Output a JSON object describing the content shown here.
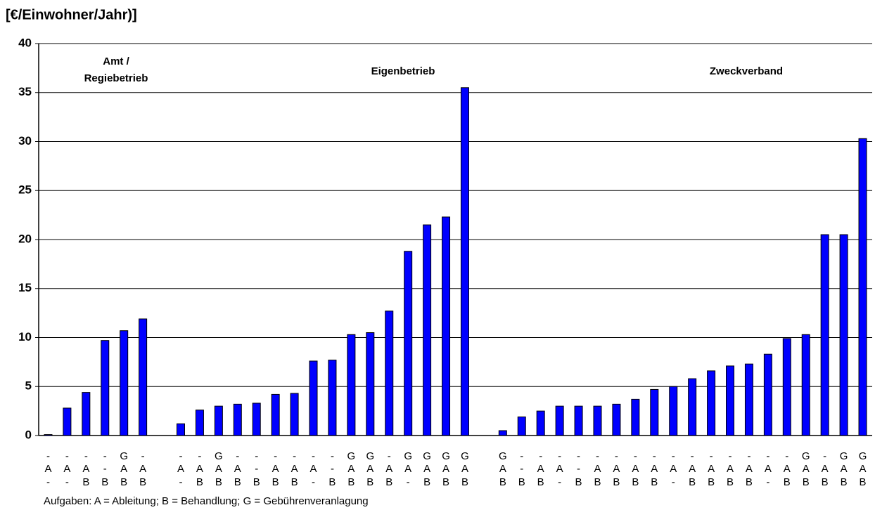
{
  "chart_data": {
    "type": "bar",
    "y_label": "[€/Einwohner/Jahr)]",
    "footnote": "Aufgaben: A = Ableitung; B  = Behandlung; G =  Gebührenveranlagung",
    "annotations": [
      [
        "Amt /",
        "Regiebetrieb"
      ],
      [
        "Eigenbetrieb"
      ],
      [
        "Zweckverband"
      ]
    ],
    "categories": [
      [
        "-",
        "A",
        "-"
      ],
      [
        "-",
        "A",
        "-"
      ],
      [
        "-",
        "A",
        "B"
      ],
      [
        "-",
        "-",
        "B"
      ],
      [
        "G",
        "A",
        "B"
      ],
      [
        "-",
        "A",
        "B"
      ],
      null,
      [
        "-",
        "A",
        "-"
      ],
      [
        "-",
        "A",
        "B"
      ],
      [
        "G",
        "A",
        "B"
      ],
      [
        "-",
        "A",
        "B"
      ],
      [
        "-",
        "-",
        "B"
      ],
      [
        "-",
        "A",
        "B"
      ],
      [
        "-",
        "A",
        "B"
      ],
      [
        "-",
        "A",
        "-"
      ],
      [
        "-",
        "-",
        "B"
      ],
      [
        "G",
        "A",
        "B"
      ],
      [
        "G",
        "A",
        "B"
      ],
      [
        "-",
        "A",
        "B"
      ],
      [
        "G",
        "A",
        "-"
      ],
      [
        "G",
        "A",
        "B"
      ],
      [
        "G",
        "A",
        "B"
      ],
      [
        "G",
        "A",
        "B"
      ],
      null,
      [
        "G",
        "A",
        "B"
      ],
      [
        "-",
        "-",
        "B"
      ],
      [
        "-",
        "A",
        "B"
      ],
      [
        "-",
        "A",
        "-"
      ],
      [
        "-",
        "-",
        "B"
      ],
      [
        "-",
        "A",
        "B"
      ],
      [
        "-",
        "A",
        "B"
      ],
      [
        "-",
        "A",
        "B"
      ],
      [
        "-",
        "A",
        "B"
      ],
      [
        "-",
        "A",
        "-"
      ],
      [
        "-",
        "A",
        "B"
      ],
      [
        "-",
        "A",
        "B"
      ],
      [
        "-",
        "A",
        "B"
      ],
      [
        "-",
        "A",
        "B"
      ],
      [
        "-",
        "A",
        "-"
      ],
      [
        "-",
        "A",
        "B"
      ],
      [
        "G",
        "A",
        "B"
      ],
      [
        "-",
        "A",
        "B"
      ],
      [
        "G",
        "A",
        "B"
      ],
      [
        "G",
        "A",
        "B"
      ]
    ],
    "values": [
      0.1,
      2.8,
      4.4,
      9.7,
      10.7,
      11.9,
      null,
      1.2,
      2.6,
      3.0,
      3.2,
      3.3,
      4.2,
      4.3,
      7.6,
      7.7,
      10.3,
      10.5,
      12.7,
      18.8,
      21.5,
      22.3,
      35.5,
      null,
      0.5,
      1.9,
      2.5,
      3.0,
      3.0,
      3.0,
      3.2,
      3.7,
      4.7,
      5.0,
      5.8,
      6.6,
      7.1,
      7.3,
      8.3,
      9.9,
      10.3,
      20.5,
      20.5,
      30.3
    ],
    "color": "#0000ff",
    "ylim": [
      0,
      40
    ],
    "yticks": [
      0,
      5,
      10,
      15,
      20,
      25,
      30,
      35,
      40
    ],
    "grid": true
  }
}
